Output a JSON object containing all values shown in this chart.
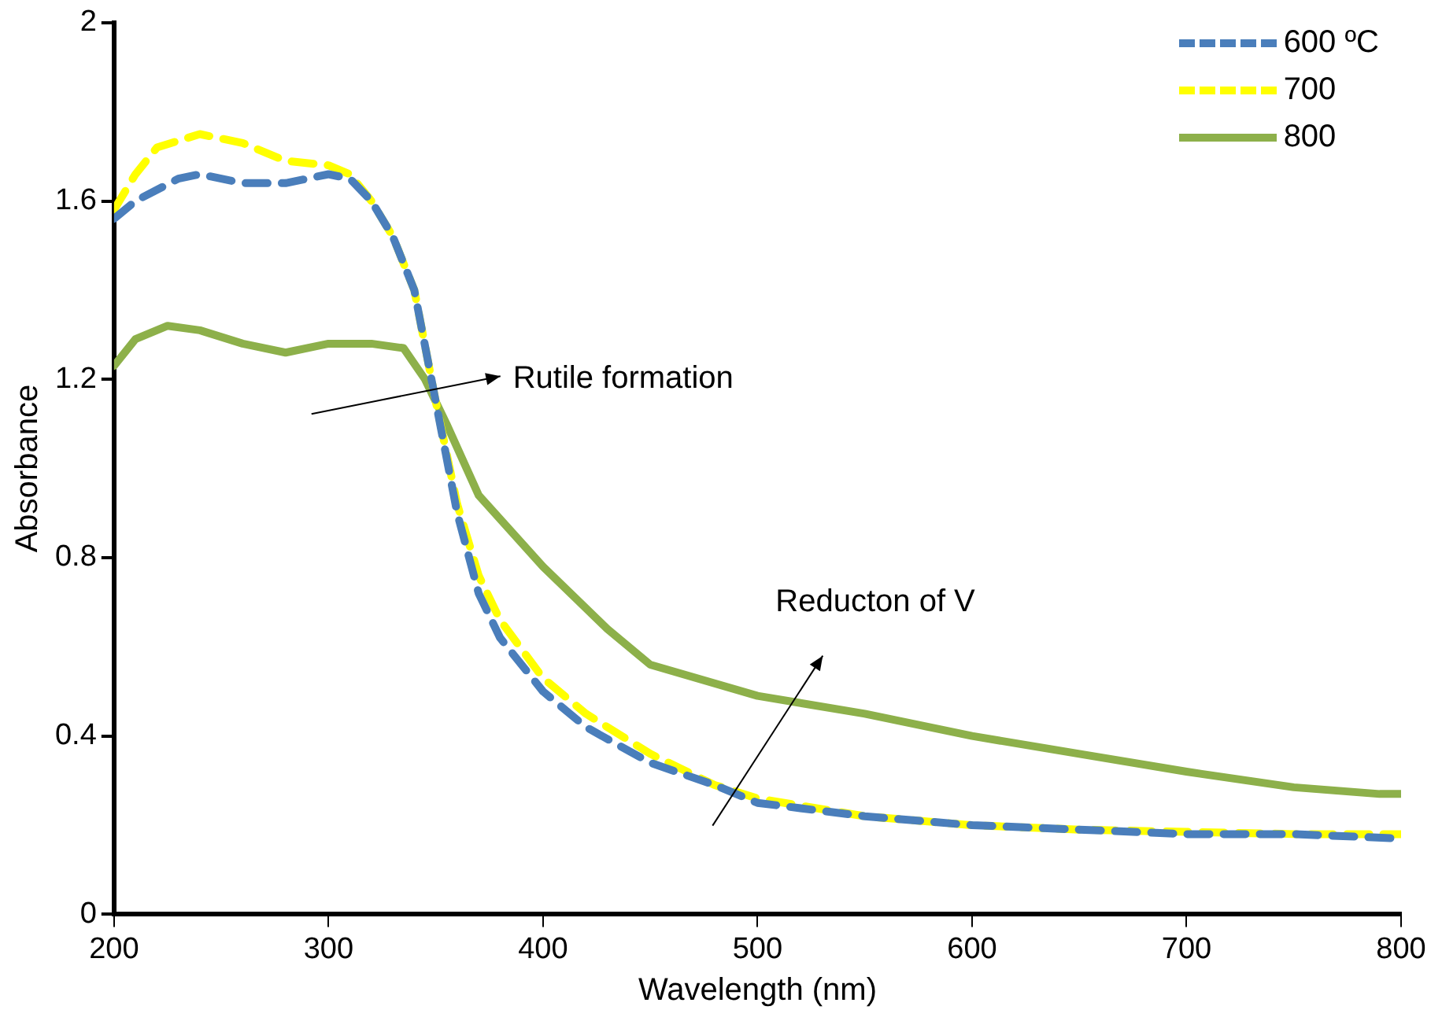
{
  "chart_data": {
    "type": "line",
    "xlabel": "Wavelength (nm)",
    "ylabel": "Absorbance",
    "xlim": [
      200,
      800
    ],
    "xticks": [
      200,
      300,
      400,
      500,
      600,
      700,
      800
    ],
    "ylim": [
      0,
      2
    ],
    "yticks": [
      0,
      0.4,
      0.8,
      1.2,
      1.6,
      2
    ],
    "grid": false,
    "legend": "top right",
    "marker": "none",
    "annotations": [
      "Rutile formation",
      "Reducton of V"
    ],
    "series": [
      {
        "name": "600 ºC",
        "color": "#4a7ebb",
        "line_style": "dashed",
        "x": [
          200,
          210,
          230,
          240,
          260,
          280,
          300,
          310,
          320,
          330,
          340,
          350,
          360,
          370,
          380,
          400,
          420,
          450,
          480,
          500,
          550,
          600,
          650,
          700,
          750,
          800
        ],
        "values": [
          1.56,
          1.6,
          1.65,
          1.66,
          1.64,
          1.64,
          1.66,
          1.65,
          1.6,
          1.52,
          1.4,
          1.15,
          0.9,
          0.72,
          0.62,
          0.5,
          0.42,
          0.34,
          0.29,
          0.25,
          0.22,
          0.2,
          0.19,
          0.18,
          0.18,
          0.17
        ]
      },
      {
        "name": "700",
        "color": "#ffff00",
        "line_style": "dashed",
        "x": [
          200,
          210,
          220,
          240,
          260,
          280,
          300,
          310,
          320,
          330,
          340,
          350,
          360,
          370,
          380,
          400,
          420,
          450,
          480,
          500,
          550,
          600,
          650,
          700,
          750,
          800
        ],
        "values": [
          1.58,
          1.66,
          1.72,
          1.75,
          1.73,
          1.69,
          1.68,
          1.66,
          1.6,
          1.52,
          1.4,
          1.15,
          0.92,
          0.76,
          0.66,
          0.53,
          0.45,
          0.36,
          0.29,
          0.26,
          0.22,
          0.2,
          0.19,
          0.185,
          0.18,
          0.18
        ]
      },
      {
        "name": "800",
        "color": "#8db04a",
        "line_style": "solid",
        "x": [
          200,
          210,
          225,
          240,
          260,
          280,
          300,
          320,
          335,
          345,
          355,
          370,
          400,
          430,
          450,
          500,
          550,
          600,
          650,
          700,
          750,
          790,
          800
        ],
        "values": [
          1.23,
          1.29,
          1.32,
          1.31,
          1.28,
          1.26,
          1.28,
          1.28,
          1.27,
          1.2,
          1.1,
          0.94,
          0.78,
          0.64,
          0.56,
          0.49,
          0.45,
          0.4,
          0.36,
          0.32,
          0.285,
          0.27,
          0.27
        ]
      }
    ]
  }
}
